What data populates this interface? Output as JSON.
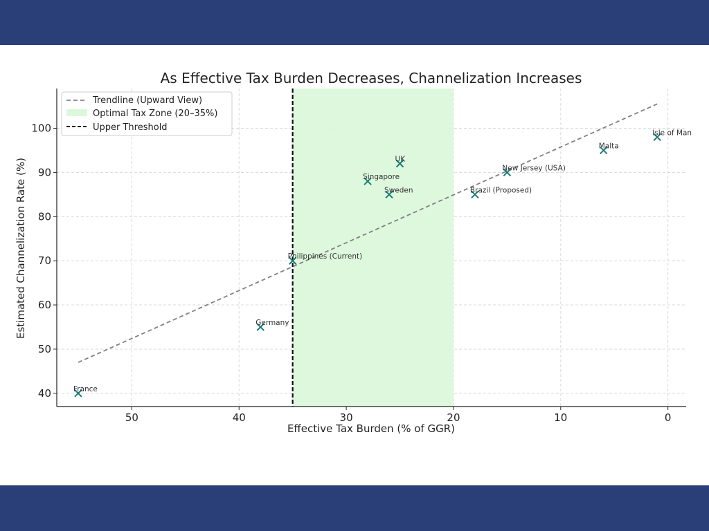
{
  "colors": {
    "band": "#2a3f77",
    "marker": "#1a7a78",
    "trend": "#808080",
    "zone_fill": "#dcf8dc",
    "threshold": "#111111",
    "grid": "#d9d9d9"
  },
  "chart_data": {
    "type": "scatter",
    "title": "As Effective Tax Burden Decreases, Channelization Increases",
    "xlabel": "Effective Tax Burden (% of GGR)",
    "ylabel": "Estimated Channelization Rate (%)",
    "xlim": [
      57,
      -1.7
    ],
    "ylim": [
      37,
      109
    ],
    "x_reversed": true,
    "grid": true,
    "legend_placement": "top-left",
    "x_ticks": [
      50,
      40,
      30,
      20,
      10,
      0
    ],
    "y_ticks": [
      40,
      50,
      60,
      70,
      80,
      90,
      100
    ],
    "points": [
      {
        "label": "France",
        "x": 55,
        "y": 40
      },
      {
        "label": "Germany",
        "x": 38,
        "y": 55
      },
      {
        "label": "Philippines (Current)",
        "x": 35,
        "y": 70
      },
      {
        "label": "Singapore",
        "x": 28,
        "y": 88
      },
      {
        "label": "Sweden",
        "x": 26,
        "y": 85
      },
      {
        "label": "UK",
        "x": 25,
        "y": 92
      },
      {
        "label": "Brazil (Proposed)",
        "x": 18,
        "y": 85
      },
      {
        "label": "New Jersey (USA)",
        "x": 15,
        "y": 90
      },
      {
        "label": "Malta",
        "x": 6,
        "y": 95
      },
      {
        "label": "Isle of Man",
        "x": 1,
        "y": 98
      }
    ],
    "trendline": {
      "name": "Trendline (Upward View)",
      "x": [
        55,
        1
      ],
      "y": [
        47,
        105.5
      ]
    },
    "zone": {
      "name": "Optimal Tax Zone (20–35%)",
      "x_from": 35,
      "x_to": 20
    },
    "threshold": {
      "name": "Upper Threshold",
      "x": 35
    }
  }
}
